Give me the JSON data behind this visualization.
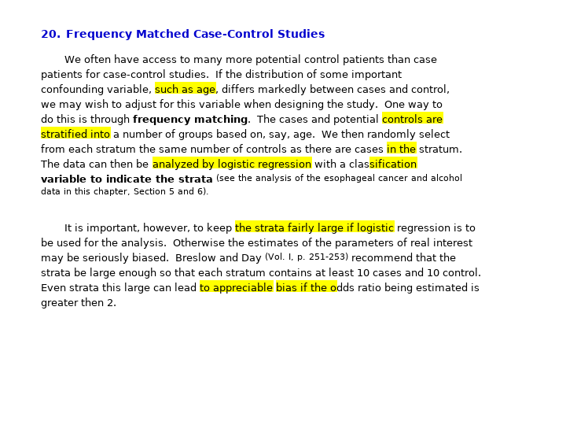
{
  "bg_color": "#ffffff",
  "highlight_color": "#ffff00",
  "title_color": "#0000cd",
  "body_color": "#000000",
  "fig_width": 7.2,
  "fig_height": 5.4,
  "dpi": 100
}
